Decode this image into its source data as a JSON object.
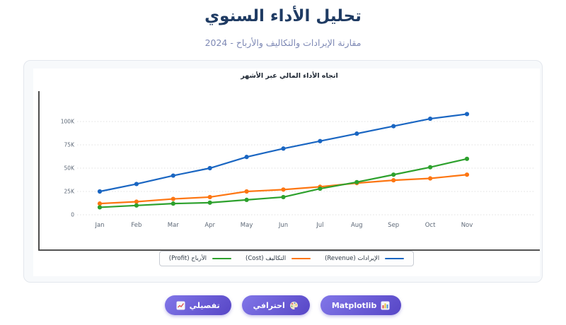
{
  "page": {
    "title": "تحليل الأداء السنوي",
    "subtitle": "مقارنة الإيرادات والتكاليف والأرباح - 2024"
  },
  "chart_data": {
    "type": "line",
    "title": "اتجاه الأداء المالي عبر الأشهر",
    "categories": [
      "Jan",
      "Feb",
      "Mar",
      "Apr",
      "May",
      "Jun",
      "Jul",
      "Aug",
      "Sep",
      "Oct",
      "Nov"
    ],
    "y_ticks": [
      "0",
      "25K",
      "50K",
      "75K",
      "100K"
    ],
    "ylim": [
      0,
      115000
    ],
    "grid": true,
    "grid_style": "dotted",
    "legend_position": "bottom",
    "series": [
      {
        "name": "الإيرادات (Revenue)",
        "color": "#1a66c2",
        "values": [
          25000,
          33000,
          42000,
          50000,
          62000,
          71000,
          79000,
          87000,
          95000,
          103000,
          108000
        ]
      },
      {
        "name": "التكاليف (Cost)",
        "color": "#fd7612",
        "values": [
          12000,
          14000,
          17000,
          19000,
          25000,
          27000,
          30000,
          34000,
          37000,
          39000,
          43000
        ]
      },
      {
        "name": "الأرباح (Profit)",
        "color": "#2da12d",
        "values": [
          8000,
          10000,
          12000,
          13000,
          16000,
          19000,
          28000,
          35000,
          43000,
          51000,
          60000
        ]
      }
    ]
  },
  "buttons": [
    {
      "label": "تفصيلي",
      "icon": "chart-line-icon",
      "icon_side": "left"
    },
    {
      "label": "احترافي",
      "icon": "palette-icon",
      "icon_side": "right"
    },
    {
      "label": "Matplotlib",
      "icon": "bar-chart-icon",
      "icon_side": "right"
    }
  ],
  "colors": {
    "button_gradient": [
      "#8176e8",
      "#5746c6"
    ],
    "title": "#1f3b63",
    "subtitle": "#7e89b5",
    "axis_spine": "#3a3a3a"
  }
}
